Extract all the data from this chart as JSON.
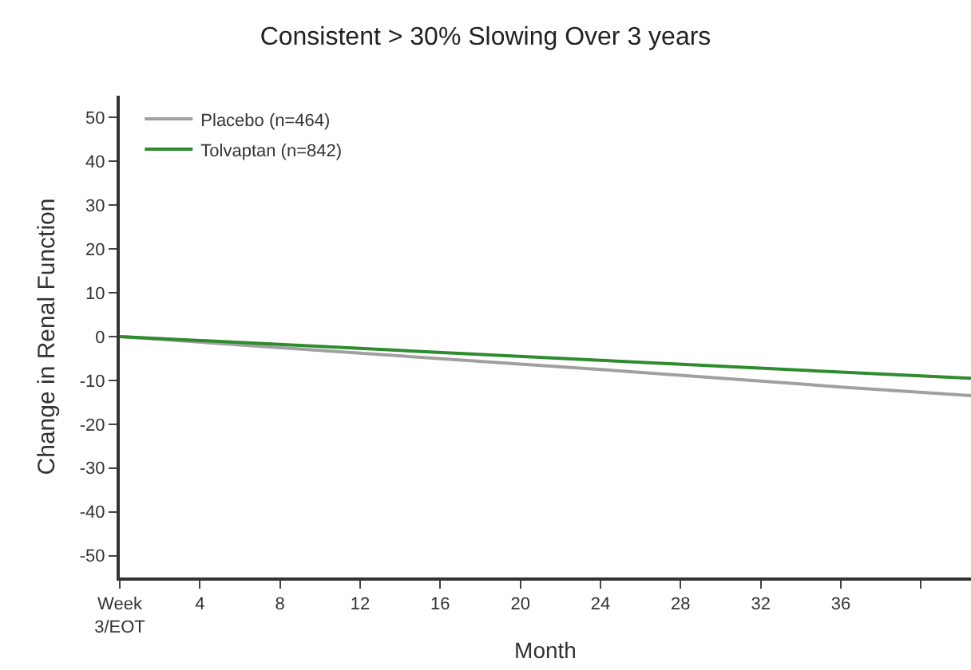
{
  "chart_data": {
    "type": "line",
    "title": "Consistent > 30% Slowing Over 3 years",
    "xlabel": "Month",
    "ylabel": "Change in Renal Function",
    "xlim": [
      0,
      42.5
    ],
    "ylim": [
      -55,
      55
    ],
    "xticks": [
      {
        "value": 0,
        "label": "Week\n3/EOT"
      },
      4,
      8,
      12,
      16,
      20,
      24,
      28,
      32,
      36,
      {
        "value": 40,
        "label": null
      }
    ],
    "yticks": [
      -50,
      -40,
      -30,
      -20,
      -10,
      0,
      10,
      20,
      30,
      40,
      50
    ],
    "series": [
      {
        "name": "Placebo (n=464)",
        "color": "#a0a0a0",
        "x": [
          0,
          12,
          24,
          36,
          42.5
        ],
        "values": [
          0,
          -3.8,
          -7.5,
          -11.5,
          -13.5
        ]
      },
      {
        "name": "Tolvaptan (n=842)",
        "color": "#2e8b2e",
        "x": [
          0,
          12,
          24,
          36,
          42.5
        ],
        "values": [
          0,
          -2.7,
          -5.4,
          -8.1,
          -9.5
        ]
      }
    ],
    "grid": false,
    "legend": "top left",
    "marker": "none",
    "line_style": "solid"
  }
}
